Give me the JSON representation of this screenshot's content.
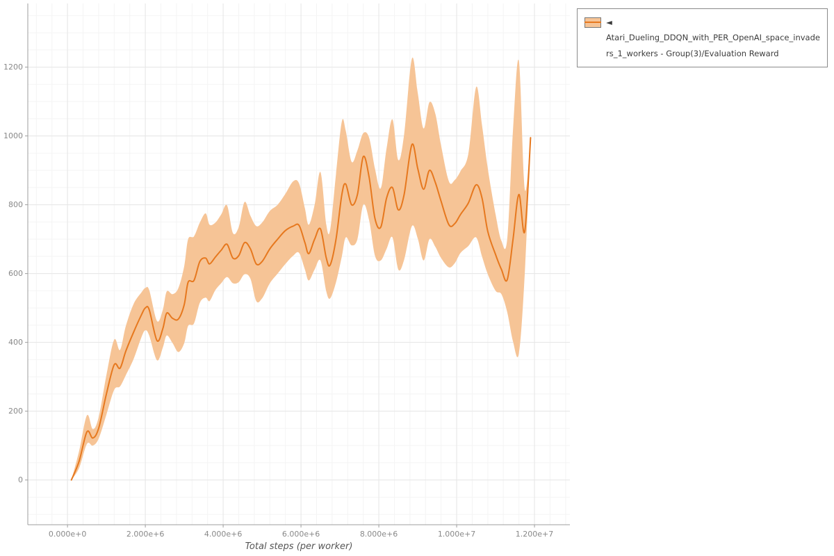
{
  "window": {
    "background": "#ffffff"
  },
  "legend": {
    "label": "◄ Atari_Dueling_DDQN_with_PER_OpenAI_space_invaders_1_workers - Group(3)/Evaluation Reward"
  },
  "colors": {
    "line": "#e6781e",
    "band": "#f6c496",
    "grid_minor": "#f4f4f4",
    "grid_major": "#e6e6e6",
    "axis": "#9e9e9e",
    "tick_text": "#888888",
    "axis_label_text": "#555555"
  },
  "chart_data": {
    "type": "line",
    "title": "",
    "xlabel": "Total steps (per worker)",
    "ylabel": "",
    "grid": true,
    "legend_position": "top-right",
    "xlim": [
      -1020000,
      12910000
    ],
    "ylim": [
      -130,
      1385
    ],
    "xticks": [
      {
        "value": 0,
        "label": "0.000e+0"
      },
      {
        "value": 2000000,
        "label": "2.000e+6"
      },
      {
        "value": 4000000,
        "label": "4.000e+6"
      },
      {
        "value": 6000000,
        "label": "6.000e+6"
      },
      {
        "value": 8000000,
        "label": "8.000e+6"
      },
      {
        "value": 10000000,
        "label": "1.000e+7"
      },
      {
        "value": 12000000,
        "label": "1.200e+7"
      }
    ],
    "yticks": [
      {
        "value": 0,
        "label": "0"
      },
      {
        "value": 200,
        "label": "200"
      },
      {
        "value": 400,
        "label": "400"
      },
      {
        "value": 600,
        "label": "600"
      },
      {
        "value": 800,
        "label": "800"
      },
      {
        "value": 1000,
        "label": "1000"
      },
      {
        "value": 1200,
        "label": "1200"
      }
    ],
    "minor_grid_step_x": 400000,
    "minor_grid_step_y": 50,
    "series": [
      {
        "name": "Atari_Dueling_DDQN_with_PER_OpenAI_space_invaders_1_workers - Group(3)/Evaluation Reward",
        "color": "#e6781e",
        "band_color": "#f6c496",
        "x": [
          100000,
          300000,
          500000,
          650000,
          800000,
          1000000,
          1200000,
          1350000,
          1500000,
          1700000,
          1900000,
          2000000,
          2100000,
          2300000,
          2450000,
          2550000,
          2700000,
          2850000,
          3000000,
          3100000,
          3250000,
          3400000,
          3550000,
          3650000,
          3800000,
          3950000,
          4100000,
          4250000,
          4400000,
          4550000,
          4700000,
          4850000,
          5000000,
          5200000,
          5400000,
          5600000,
          5800000,
          5950000,
          6100000,
          6200000,
          6350000,
          6500000,
          6650000,
          6750000,
          6900000,
          7050000,
          7150000,
          7300000,
          7450000,
          7600000,
          7750000,
          7900000,
          8050000,
          8200000,
          8350000,
          8500000,
          8650000,
          8850000,
          9000000,
          9150000,
          9300000,
          9450000,
          9600000,
          9800000,
          9950000,
          10100000,
          10300000,
          10500000,
          10650000,
          10800000,
          11000000,
          11150000,
          11300000,
          11450000,
          11600000,
          11750000,
          11900000
        ],
        "mean": [
          0,
          55,
          140,
          122,
          150,
          250,
          335,
          325,
          375,
          430,
          480,
          500,
          495,
          405,
          440,
          485,
          470,
          468,
          510,
          575,
          580,
          635,
          645,
          628,
          648,
          668,
          685,
          645,
          652,
          690,
          672,
          628,
          635,
          672,
          700,
          725,
          738,
          740,
          690,
          658,
          700,
          730,
          645,
          625,
          700,
          830,
          860,
          800,
          830,
          940,
          880,
          760,
          735,
          820,
          850,
          785,
          830,
          975,
          905,
          845,
          900,
          865,
          810,
          742,
          745,
          772,
          805,
          858,
          820,
          722,
          655,
          612,
          582,
          700,
          830,
          722,
          995
        ],
        "lower": [
          0,
          35,
          105,
          100,
          120,
          190,
          262,
          272,
          305,
          352,
          415,
          435,
          420,
          348,
          385,
          420,
          398,
          372,
          398,
          448,
          455,
          515,
          530,
          520,
          552,
          572,
          590,
          572,
          575,
          598,
          585,
          520,
          528,
          572,
          600,
          628,
          652,
          660,
          612,
          580,
          612,
          638,
          548,
          528,
          575,
          650,
          705,
          682,
          700,
          800,
          755,
          652,
          638,
          672,
          705,
          612,
          640,
          738,
          702,
          638,
          700,
          678,
          645,
          618,
          630,
          660,
          680,
          705,
          650,
          598,
          550,
          540,
          488,
          402,
          368,
          598,
          990
        ],
        "upper": [
          0,
          85,
          188,
          148,
          182,
          305,
          408,
          378,
          448,
          512,
          545,
          558,
          552,
          462,
          495,
          548,
          540,
          558,
          622,
          700,
          708,
          748,
          775,
          742,
          748,
          772,
          798,
          718,
          735,
          808,
          768,
          738,
          748,
          782,
          800,
          832,
          868,
          862,
          790,
          742,
          800,
          895,
          742,
          728,
          890,
          1042,
          1015,
          925,
          958,
          1008,
          995,
          905,
          848,
          965,
          1048,
          930,
          1005,
          1225,
          1125,
          1022,
          1098,
          1065,
          972,
          868,
          872,
          898,
          948,
          1142,
          1032,
          905,
          772,
          695,
          700,
          1020,
          1218,
          845,
          1000
        ]
      }
    ]
  }
}
